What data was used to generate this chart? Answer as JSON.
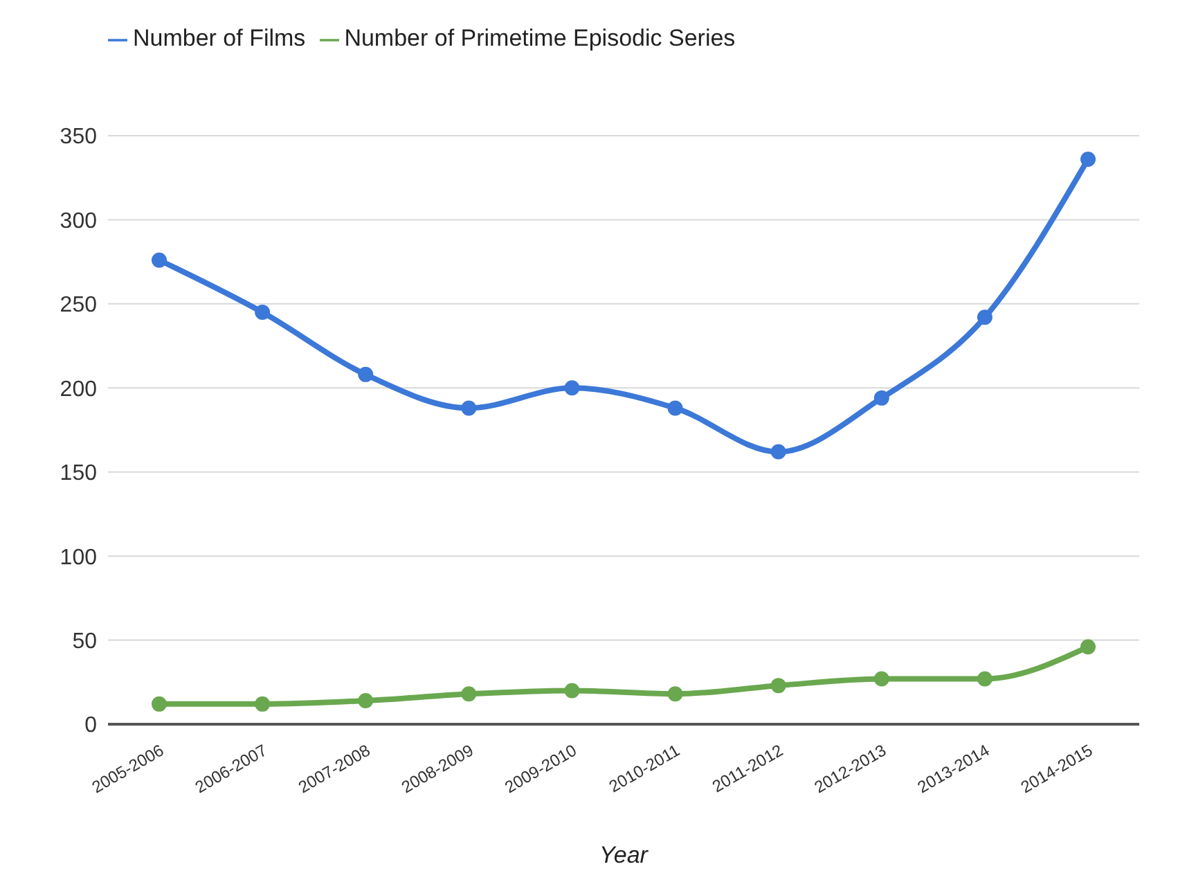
{
  "chart_data": {
    "type": "line",
    "xlabel": "Year",
    "categories": [
      "2005-2006",
      "2006-2007",
      "2007-2008",
      "2008-2009",
      "2009-2010",
      "2010-2011",
      "2011-2012",
      "2012-2013",
      "2013-2014",
      "2014-2015"
    ],
    "series": [
      {
        "name": "Number of Primetime Episodic Series",
        "color": "#6aa84f",
        "values": [
          12,
          12,
          14,
          18,
          20,
          18,
          23,
          27,
          27,
          46
        ]
      },
      {
        "name": "Number of Films",
        "color": "#3c78d8",
        "values": [
          276,
          245,
          208,
          188,
          200,
          188,
          162,
          194,
          242,
          336
        ]
      }
    ],
    "ylim": [
      0,
      350
    ],
    "yticks": [
      0,
      50,
      100,
      150,
      200,
      250,
      300,
      350
    ],
    "grid": "y",
    "legend": "top left",
    "marker": "circle",
    "line_style": "solid"
  }
}
